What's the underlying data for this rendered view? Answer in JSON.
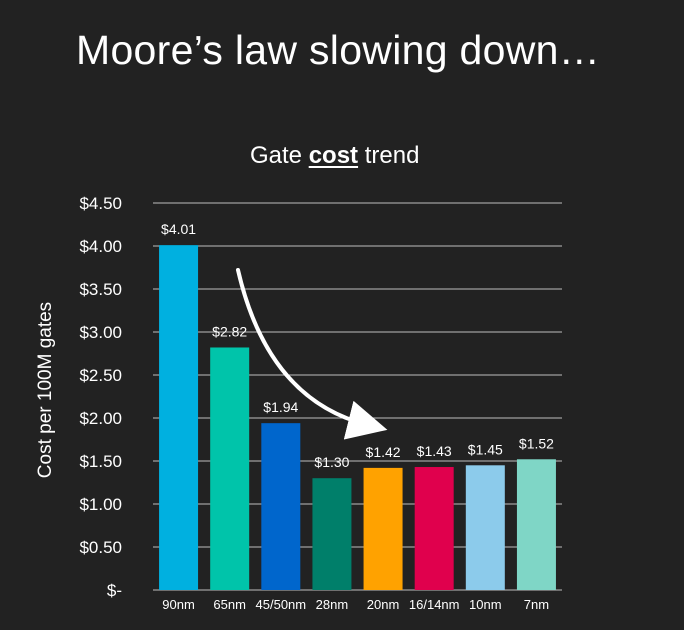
{
  "slide": {
    "title": "Moore’s law slowing down…"
  },
  "chart_data": {
    "type": "bar",
    "title_parts": [
      "Gate ",
      "cost",
      " trend"
    ],
    "title_emphasis_index": 1,
    "categories": [
      "90nm",
      "65nm",
      "45/50nm",
      "28nm",
      "20nm",
      "16/14nm",
      "10nm",
      "7nm"
    ],
    "values": [
      4.01,
      2.82,
      1.94,
      1.3,
      1.42,
      1.43,
      1.45,
      1.52
    ],
    "data_labels": [
      "$4.01",
      "$2.82",
      "$1.94",
      "$1.30",
      "$1.42",
      "$1.43",
      "$1.45",
      "$1.52"
    ],
    "bar_colors": [
      "#00b0e0",
      "#00c4aa",
      "#0066cc",
      "#007f6a",
      "#ffa200",
      "#e0004d",
      "#8ccbeb",
      "#7fd6c6"
    ],
    "ylabel": "Cost per 100M gates",
    "ylim": [
      0,
      4.5
    ],
    "yticks": [
      0,
      0.5,
      1.0,
      1.5,
      2.0,
      2.5,
      3.0,
      3.5,
      4.0,
      4.5
    ],
    "ytick_labels": [
      "$-",
      "$0.50",
      "$1.00",
      "$1.50",
      "$2.00",
      "$2.50",
      "$3.00",
      "$3.50",
      "$4.00",
      "$4.50"
    ],
    "grid": true,
    "legend": "none",
    "annotation": "curved-arrow-downward-trend",
    "colors": {
      "background": "#222222",
      "gridline": "#bfbfbf",
      "text": "#ffffff",
      "arrow": "#ffffff"
    }
  }
}
